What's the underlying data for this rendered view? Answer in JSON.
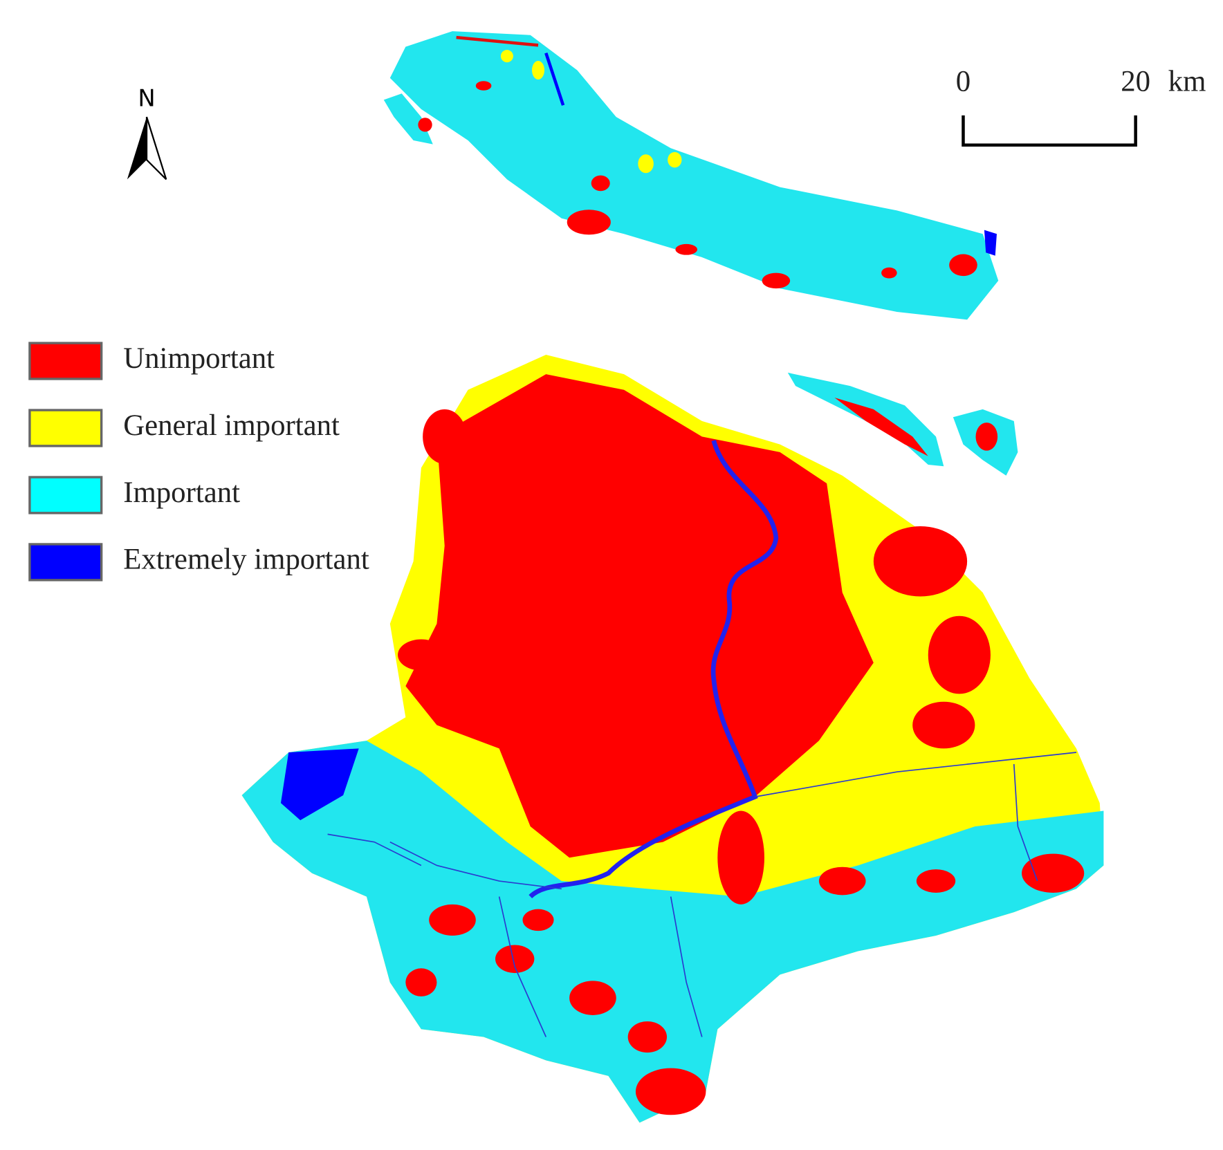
{
  "north_arrow": {
    "label": "N"
  },
  "scale_bar": {
    "labels": [
      "0",
      "20"
    ],
    "unit": "km"
  },
  "legend": {
    "items": [
      {
        "label": "Unimportant",
        "color": "#ff0000"
      },
      {
        "label": "General important",
        "color": "#ffff00"
      },
      {
        "label": "Important",
        "color": "#00ffff"
      },
      {
        "label": "Extremely important",
        "color": "#0000ff"
      }
    ]
  }
}
